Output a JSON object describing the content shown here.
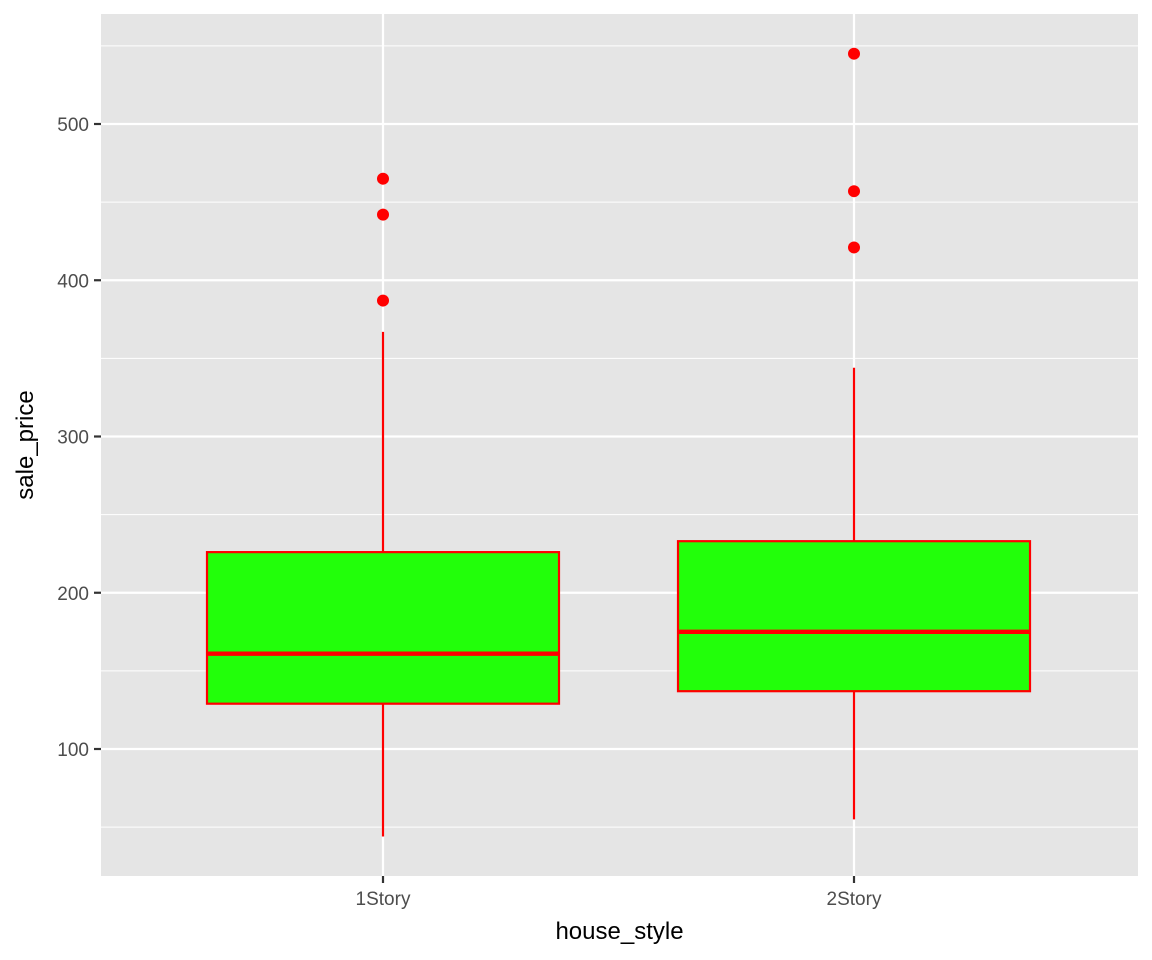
{
  "chart_data": {
    "type": "boxplot",
    "title": "",
    "xlabel": "house_style",
    "ylabel": "sale_price",
    "categories": [
      "1Story",
      "2Story"
    ],
    "ylim": [
      20,
      570
    ],
    "yticks": [
      100,
      200,
      300,
      400,
      500
    ],
    "ytick_labels": [
      "100",
      "200",
      "300",
      "400",
      "500"
    ],
    "grid": true,
    "legend": "none",
    "colors": {
      "panel": "#e5e5e5",
      "grid": "#ffffff",
      "box_fill": "#22ff0a",
      "box_outline": "#ff0000",
      "outlier": "#ff0000"
    },
    "series": [
      {
        "category": "1Story",
        "whisker_low": 44,
        "q1": 129,
        "median": 161,
        "q3": 226,
        "whisker_high": 367,
        "outliers": [
          387,
          442,
          465
        ]
      },
      {
        "category": "2Story",
        "whisker_low": 55,
        "q1": 137,
        "median": 175,
        "q3": 233,
        "whisker_high": 344,
        "outliers": [
          421,
          457,
          545
        ]
      }
    ]
  }
}
